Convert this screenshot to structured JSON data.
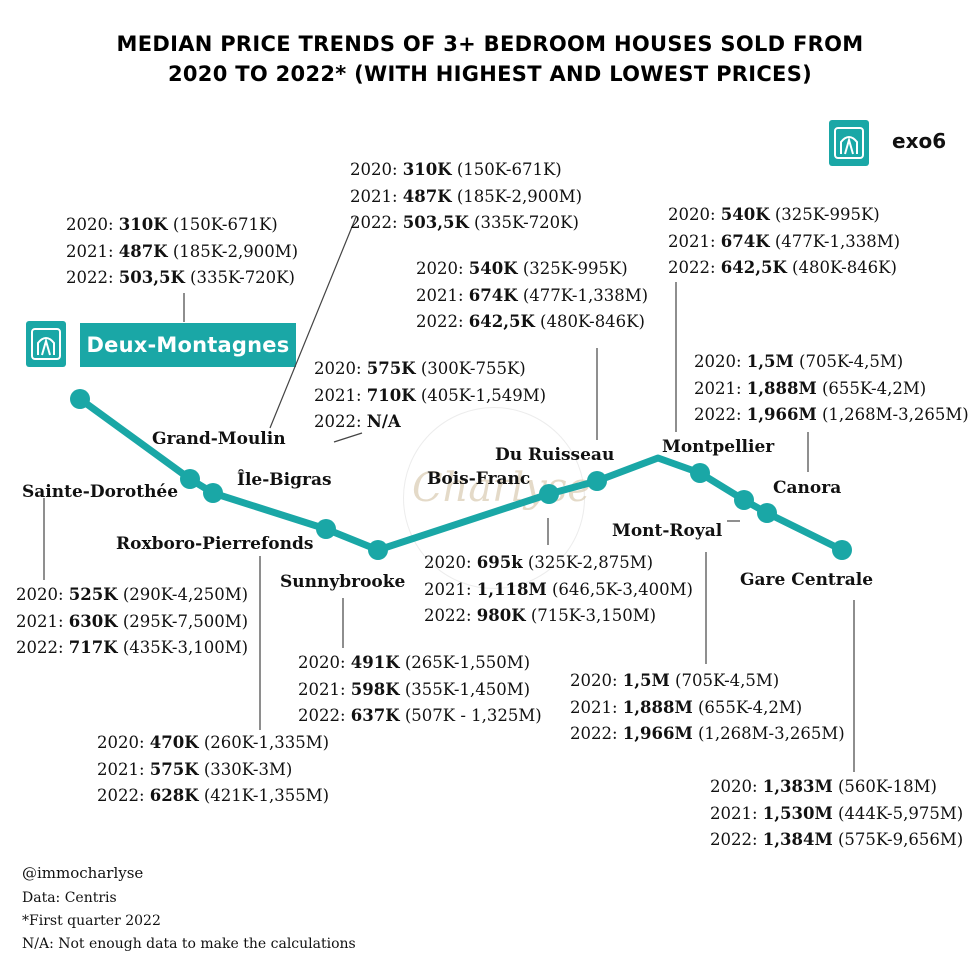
{
  "title": {
    "line1": "MEDIAN PRICE TRENDS OF 3+ BEDROOM HOUSES SOLD FROM",
    "line2": "2020 TO 2022* (WITH HIGHEST AND LOWEST PRICES)"
  },
  "brand": {
    "name": "exo6",
    "icon": "exo-logo-icon"
  },
  "line_name": "Deux-Montagnes",
  "line_color": "#1aa7a6",
  "watermark": "Charlyse",
  "stations": [
    {
      "name": "Sainte-Dorothée"
    },
    {
      "name": "Grand-Moulin"
    },
    {
      "name": "Roxboro-Pierrefonds"
    },
    {
      "name": "Île-Bigras"
    },
    {
      "name": "Sunnybrooke"
    },
    {
      "name": "Bois-Franc"
    },
    {
      "name": "Du Ruisseau"
    },
    {
      "name": "Montpellier"
    },
    {
      "name": "Mont-Royal"
    },
    {
      "name": "Canora"
    },
    {
      "name": "Gare Centrale"
    }
  ],
  "prices": {
    "grand_moulin": [
      [
        "2020: ",
        "310K",
        " (150K-671K)"
      ],
      [
        "2021: ",
        "487K",
        " (185K-2,900M)"
      ],
      [
        "2022: ",
        "503,5K",
        " (335K-720K)"
      ]
    ],
    "deux_montagnes": [
      [
        "2020: ",
        "310K",
        " (150K-671K)"
      ],
      [
        "2021: ",
        "487K",
        " (185K-2,900M)"
      ],
      [
        "2022: ",
        "503,5K",
        " (335K-720K)"
      ]
    ],
    "du_ruisseau": [
      [
        "2020: ",
        "540K",
        " (325K-995K)"
      ],
      [
        "2021: ",
        "674K",
        " (477K-1,338M)"
      ],
      [
        "2022: ",
        "642,5K",
        " (480K-846K)"
      ]
    ],
    "montpellier": [
      [
        "2020: ",
        "540K",
        " (325K-995K)"
      ],
      [
        "2021: ",
        "674K",
        " (477K-1,338M)"
      ],
      [
        "2022: ",
        "642,5K",
        " (480K-846K)"
      ]
    ],
    "ile_bigras": [
      [
        "2020: ",
        "575K",
        " (300K-755K)"
      ],
      [
        "2021: ",
        "710K",
        " (405K-1,549M)"
      ],
      [
        "2022: ",
        "N/A",
        ""
      ]
    ],
    "canora": [
      [
        "2020: ",
        "1,5M",
        " (705K-4,5M)"
      ],
      [
        "2021: ",
        "1,888M",
        " (655K-4,2M)"
      ],
      [
        "2022: ",
        "1,966M",
        " (1,268M-3,265M)"
      ]
    ],
    "sainte_dorothee": [
      [
        "2020: ",
        "525K",
        " (290K-4,250M)"
      ],
      [
        "2021: ",
        "630K",
        " (295K-7,500M)"
      ],
      [
        "2022: ",
        "717K",
        " (435K-3,100M)"
      ]
    ],
    "bois_franc": [
      [
        "2020: ",
        "695k",
        " (325K-2,875M)"
      ],
      [
        "2021: ",
        "1,118M",
        " (646,5K-3,400M)"
      ],
      [
        "2022: ",
        "980K",
        " (715K-3,150M)"
      ]
    ],
    "sunnybrooke": [
      [
        "2020: ",
        "491K",
        " (265K-1,550M)"
      ],
      [
        "2021: ",
        "598K",
        " (355K-1,450M)"
      ],
      [
        "2022: ",
        "637K",
        " (507K - 1,325M)"
      ]
    ],
    "roxboro": [
      [
        "2020: ",
        "470K",
        " (260K-1,335M)"
      ],
      [
        "2021: ",
        "575K",
        " (330K-3M)"
      ],
      [
        "2022: ",
        "628K",
        " (421K-1,355M)"
      ]
    ],
    "mont_royal": [
      [
        "2020: ",
        "1,5M",
        " (705K-4,5M)"
      ],
      [
        "2021: ",
        "1,888M",
        " (655K-4,2M)"
      ],
      [
        "2022: ",
        "1,966M",
        " (1,268M-3,265M)"
      ]
    ],
    "gare_centrale": [
      [
        "2020: ",
        "1,383M",
        " (560K-18M)"
      ],
      [
        "2021: ",
        "1,530M",
        " (444K-5,975M)"
      ],
      [
        "2022: ",
        "1,384M",
        " (575K-9,656M)"
      ]
    ]
  },
  "footer": {
    "credit": "@immocharlyse",
    "source": "Data: Centris",
    "note": "*First quarter 2022",
    "na": "N/A: Not enough data to make the calculations"
  }
}
